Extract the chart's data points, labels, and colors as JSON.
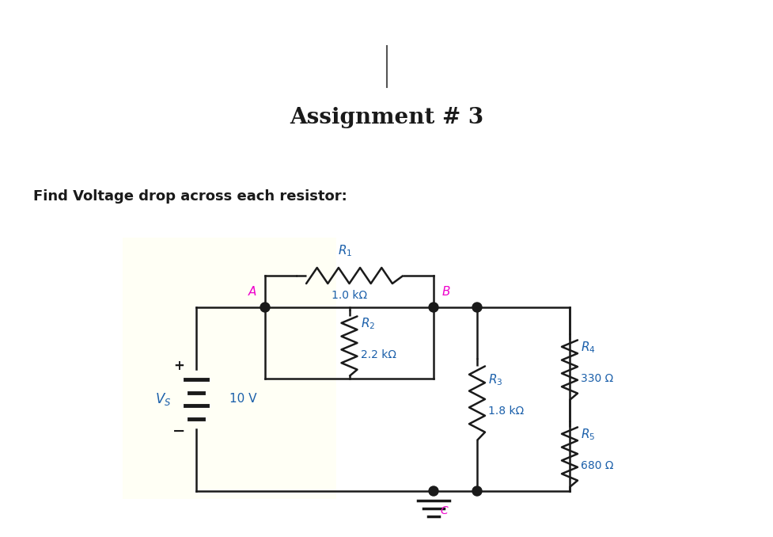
{
  "title": "Assignment # 3",
  "subtitle": "Find Voltage drop across each resistor:",
  "bg_color": "#ffffff",
  "panel_color": "#fffff5",
  "wire_color": "#1a1a1a",
  "label_color_pink": "#ee00cc",
  "label_color_blue": "#1a5faa",
  "node_color": "#1a1a1a",
  "Vs_value": "10 V",
  "R1_value": "1.0 kΩ",
  "R2_value": "2.2 kΩ",
  "R3_value": "1.8 kΩ",
  "R4_value": "330 Ω",
  "R5_value": "680 Ω"
}
